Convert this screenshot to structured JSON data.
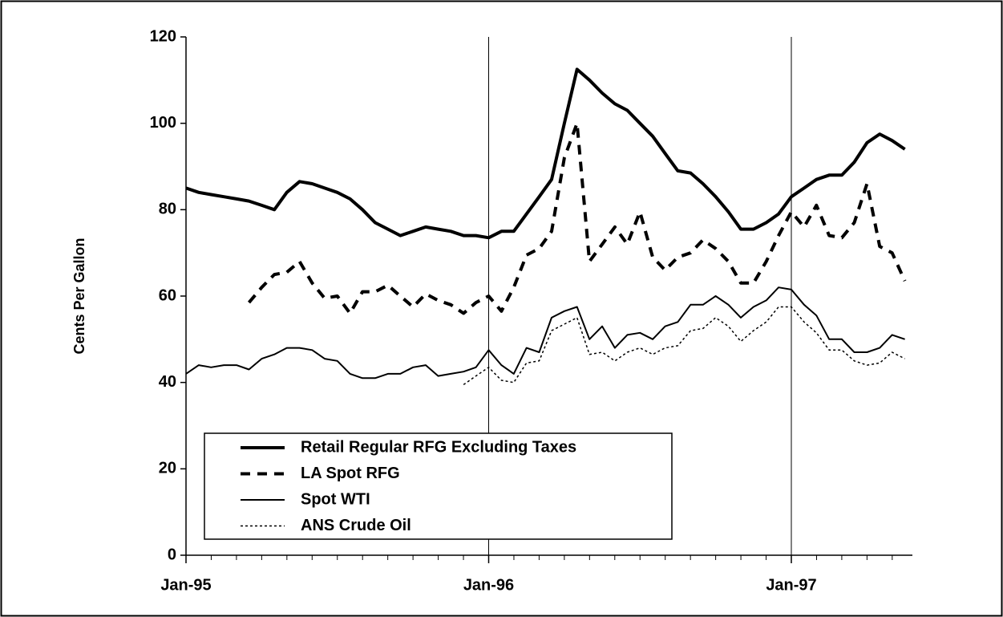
{
  "chart_data": {
    "type": "line",
    "y_axis_label": "Cents Per Gallon",
    "x": [
      1995,
      1995.042,
      1995.083,
      1995.125,
      1995.167,
      1995.208,
      1995.25,
      1995.292,
      1995.333,
      1995.375,
      1995.417,
      1995.458,
      1995.5,
      1995.542,
      1995.583,
      1995.625,
      1995.667,
      1995.708,
      1995.75,
      1995.792,
      1995.833,
      1995.875,
      1995.917,
      1995.958,
      1996,
      1996.042,
      1996.083,
      1996.125,
      1996.167,
      1996.208,
      1996.25,
      1996.292,
      1996.333,
      1996.375,
      1996.417,
      1996.458,
      1996.5,
      1996.542,
      1996.583,
      1996.625,
      1996.667,
      1996.708,
      1996.75,
      1996.792,
      1996.833,
      1996.875,
      1996.917,
      1996.958,
      1997,
      1997.042,
      1997.083,
      1997.125,
      1997.167,
      1997.208,
      1997.25,
      1997.292,
      1997.333,
      1997.375
    ],
    "series": [
      {
        "name": "Retail Regular RFG Excluding Taxes",
        "color": "#000000",
        "line_width": 4,
        "line_style": "solid",
        "values": [
          85,
          84,
          83.5,
          83,
          82.5,
          82,
          81,
          80,
          84,
          86.5,
          86,
          85,
          84,
          82.5,
          80,
          77,
          75.5,
          74,
          75,
          76,
          75.5,
          75,
          74,
          74,
          73.5,
          75,
          75,
          79,
          83,
          87,
          100,
          112.5,
          110,
          107,
          104.5,
          103,
          100,
          97,
          93,
          89,
          88.5,
          86,
          83,
          79.5,
          75.5,
          75.5,
          77,
          79,
          83,
          85,
          87,
          88,
          88,
          91,
          95.5,
          97.5,
          96,
          94
        ]
      },
      {
        "name": "LA Spot RFG",
        "color": "#000000",
        "line_width": 4,
        "line_style": "dashed",
        "values": [
          null,
          null,
          null,
          null,
          null,
          58.5,
          62,
          65,
          65.5,
          68,
          63,
          59.5,
          60,
          56,
          61,
          61,
          62.5,
          60,
          57.5,
          60.5,
          59,
          58,
          56,
          58.5,
          60,
          56.5,
          62,
          69.5,
          71,
          75,
          92,
          100,
          68,
          72,
          76,
          72,
          79.5,
          69,
          66,
          69,
          70,
          73,
          71,
          68,
          63,
          63,
          68,
          74,
          79.5,
          76,
          81,
          74,
          73.5,
          77,
          86,
          71.5,
          70,
          63.5
        ]
      },
      {
        "name": "Spot WTI",
        "color": "#000000",
        "line_width": 2,
        "line_style": "solid",
        "values": [
          42,
          44,
          43.5,
          44,
          44,
          43,
          45.5,
          46.5,
          48,
          48,
          47.5,
          45.5,
          45,
          42,
          41,
          41,
          42,
          42,
          43.5,
          44,
          41.5,
          42,
          42.5,
          43.5,
          47.5,
          44,
          42,
          48,
          47,
          55,
          56.5,
          57.5,
          50,
          53,
          48,
          51,
          51.5,
          50,
          53,
          54,
          58,
          58,
          60,
          58,
          55,
          57.5,
          59,
          62,
          61.5,
          58,
          55.5,
          50,
          50,
          47,
          47,
          48,
          51,
          50
        ]
      },
      {
        "name": "ANS Crude Oil",
        "color": "#000000",
        "line_width": 1.5,
        "line_style": "dotted",
        "values": [
          null,
          null,
          null,
          null,
          null,
          null,
          null,
          null,
          null,
          null,
          null,
          null,
          null,
          null,
          null,
          null,
          null,
          null,
          null,
          null,
          null,
          null,
          39.5,
          41.5,
          43.5,
          40.5,
          40,
          44.5,
          45,
          52,
          53.5,
          55,
          46.5,
          47,
          45,
          47,
          48,
          46.5,
          48,
          48.5,
          52,
          52.5,
          55,
          53,
          49.5,
          52,
          54,
          57.5,
          57.5,
          54,
          51.5,
          47.5,
          47.5,
          45,
          44,
          44.5,
          47,
          45.5
        ]
      }
    ],
    "xlim": [
      1995,
      1997.4
    ],
    "xticks": [
      {
        "value": 1995,
        "label": "Jan-95"
      },
      {
        "value": 1996,
        "label": "Jan-96"
      },
      {
        "value": 1997,
        "label": "Jan-97"
      }
    ],
    "ylim": [
      0,
      120
    ],
    "yticks": [
      0,
      20,
      40,
      60,
      80,
      100,
      120
    ],
    "x_grid": true,
    "legend": "lower-left"
  }
}
